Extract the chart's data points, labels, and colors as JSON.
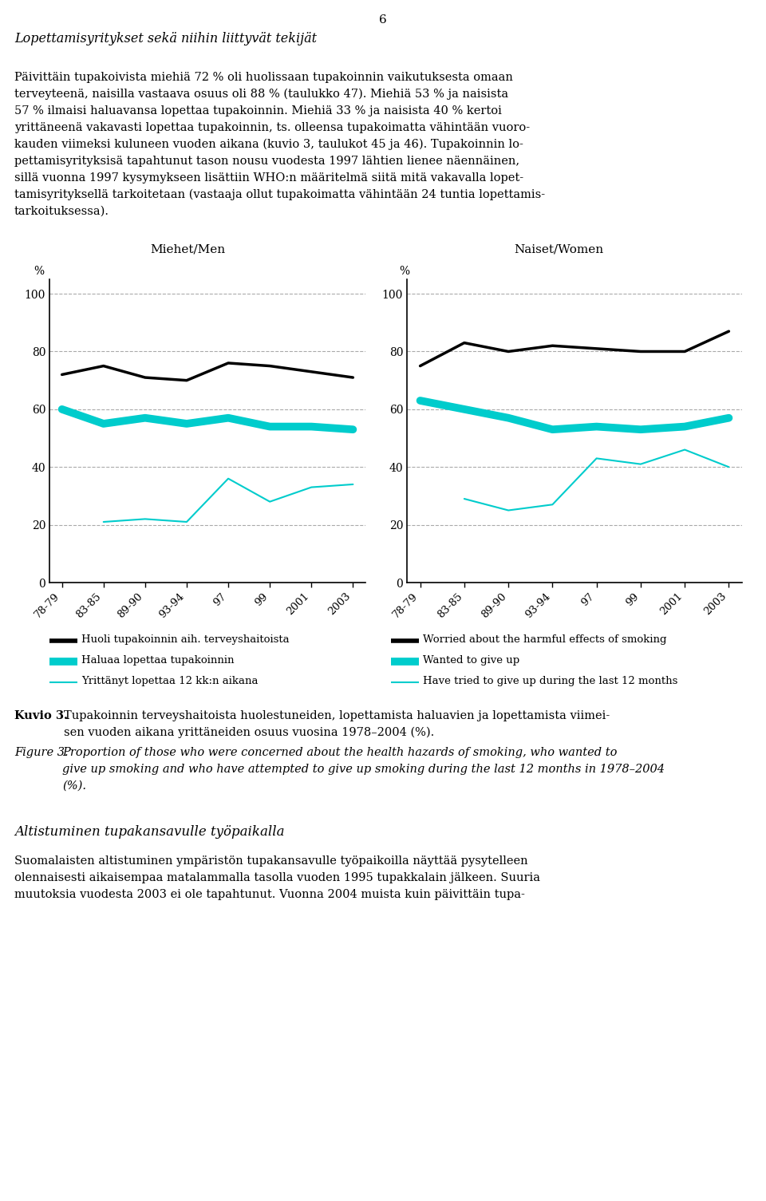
{
  "page_number": "6",
  "section_title": "Lopettamisyritykset sekä niihin liittyvät tekijät",
  "para_lines": [
    "Päivittäin tupakoivista miehiä 72 % oli huolissaan tupakoinnin vaikutuksesta omaan",
    "terveyteenä, naisilla vastaava osuus oli 88 % (taulukko 47). Miehiä 53 % ja naisista",
    "57 % ilmaisi haluavansa lopettaa tupakoinnin. Miehiä 33 % ja naisista 40 % kertoi",
    "yrittäneenä vakavasti lopettaa tupakoinnin, ts. olleensa tupakoimatta vähintään vuoro-",
    "kauden viimeksi kuluneen vuoden aikana (kuvio 3, taulukot 45 ja 46). Tupakoinnin lo-",
    "pettamisyrityksisä tapahtunut tason nousu vuodesta 1997 lähtien lienee näennäinen,",
    "sillä vuonna 1997 kysymykseen lisättiin WHO:n määritelmä siitä mitä vakavalla lopet-",
    "tamisyrityksellä tarkoitetaan (vastaaja ollut tupakoimatta vähintään 24 tuntia lopettamis-",
    "tarkoituksessa)."
  ],
  "chart_title_men": "Miehet/Men",
  "chart_title_women": "Naiset/Women",
  "ylabel": "%",
  "x_labels": [
    "78-79",
    "83-85",
    "89-90",
    "93-94",
    "97",
    "99",
    "2001",
    "2003"
  ],
  "men_black": [
    72,
    75,
    71,
    70,
    76,
    75,
    73,
    71
  ],
  "men_cyan_thick": [
    60,
    55,
    57,
    55,
    57,
    54,
    54,
    53
  ],
  "men_cyan_thin": [
    null,
    21,
    22,
    21,
    36,
    28,
    33,
    34
  ],
  "women_black": [
    75,
    83,
    80,
    82,
    81,
    80,
    80,
    87
  ],
  "women_cyan_thick": [
    63,
    60,
    57,
    53,
    54,
    53,
    54,
    57
  ],
  "women_cyan_thin": [
    null,
    29,
    25,
    27,
    43,
    41,
    46,
    40
  ],
  "legend_fi": [
    "Huoli tupakoinnin aih. terveyshaitoista",
    "Haluaa lopettaa tupakoinnin",
    "Yrittänyt lopettaa 12 kk:n aikana"
  ],
  "legend_en": [
    "Worried about the harmful effects of smoking",
    "Wanted to give up",
    "Have tried to give up during the last 12 months"
  ],
  "caption_fi_bold": "Kuvio 3.",
  "caption_fi_lines": [
    "Tupakoinnin terveyshaitoista huolestuneiden, lopettamista haluavien ja lopettamista viimei-",
    "sen vuoden aikana yrittäneiden osuus vuosina 1978–2004 (%)."
  ],
  "caption_en_bold": "Figure 3.",
  "caption_en_lines": [
    "Proportion of those who were concerned about the health hazards of smoking, who wanted to",
    "give up smoking and who have attempted to give up smoking during the last 12 months in 1978–2004",
    "(%)."
  ],
  "section2_title": "Altistuminen tupakansavulle työpaikalla",
  "para2_lines": [
    "Suomalaisten altistuminen ympäristön tupakansavulle työpaikoilla näyttää pysytelleen",
    "olennaisesti aikaisempaa matalammalla tasolla vuoden 1995 tupakkalain jälkeen. Suuria",
    "muutoksia vuodesta 2003 ei ole tapahtunut. Vuonna 2004 muista kuin päivittäin tupa-"
  ],
  "black_color": "#000000",
  "cyan_thick_color": "#00CCCC",
  "cyan_thin_color": "#00CCCC",
  "background": "#ffffff"
}
